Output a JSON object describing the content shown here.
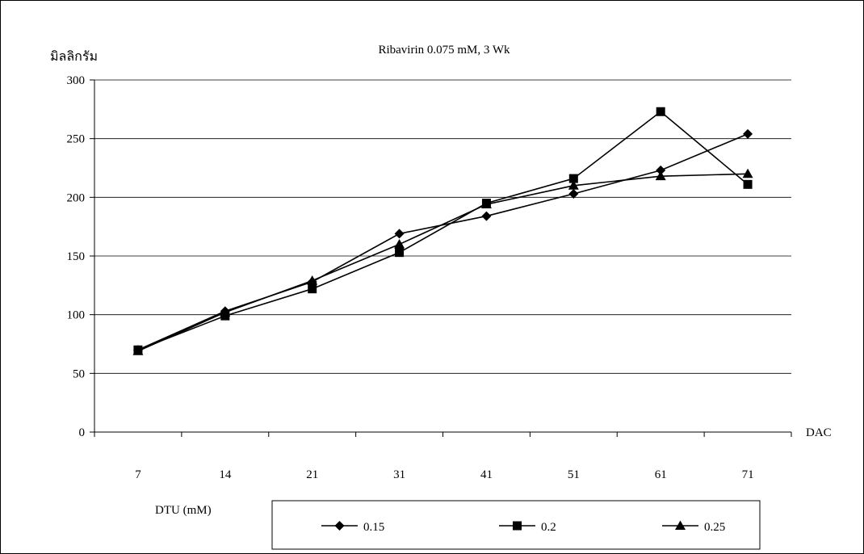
{
  "chart_data": {
    "type": "line",
    "title": "Ribavirin 0.075 mM, 3 Wk",
    "ylabel": "มิลลิกรัม",
    "xlabel": "DAC",
    "legend_title": "DTU (mM)",
    "categories": [
      "7",
      "14",
      "21",
      "31",
      "41",
      "51",
      "61",
      "71"
    ],
    "ylim": [
      0,
      300
    ],
    "yticks": [
      0,
      50,
      100,
      150,
      200,
      250,
      300
    ],
    "grid": true,
    "legend_position": "bottom",
    "series": [
      {
        "name": "0.15",
        "marker": "diamond",
        "values": [
          70,
          103,
          128,
          169,
          184,
          203,
          223,
          254
        ]
      },
      {
        "name": "0.2",
        "marker": "square",
        "values": [
          70,
          99,
          122,
          153,
          195,
          216,
          273,
          211
        ]
      },
      {
        "name": "0.25",
        "marker": "triangle",
        "values": [
          69,
          102,
          129,
          160,
          194,
          210,
          218,
          220
        ]
      }
    ]
  }
}
